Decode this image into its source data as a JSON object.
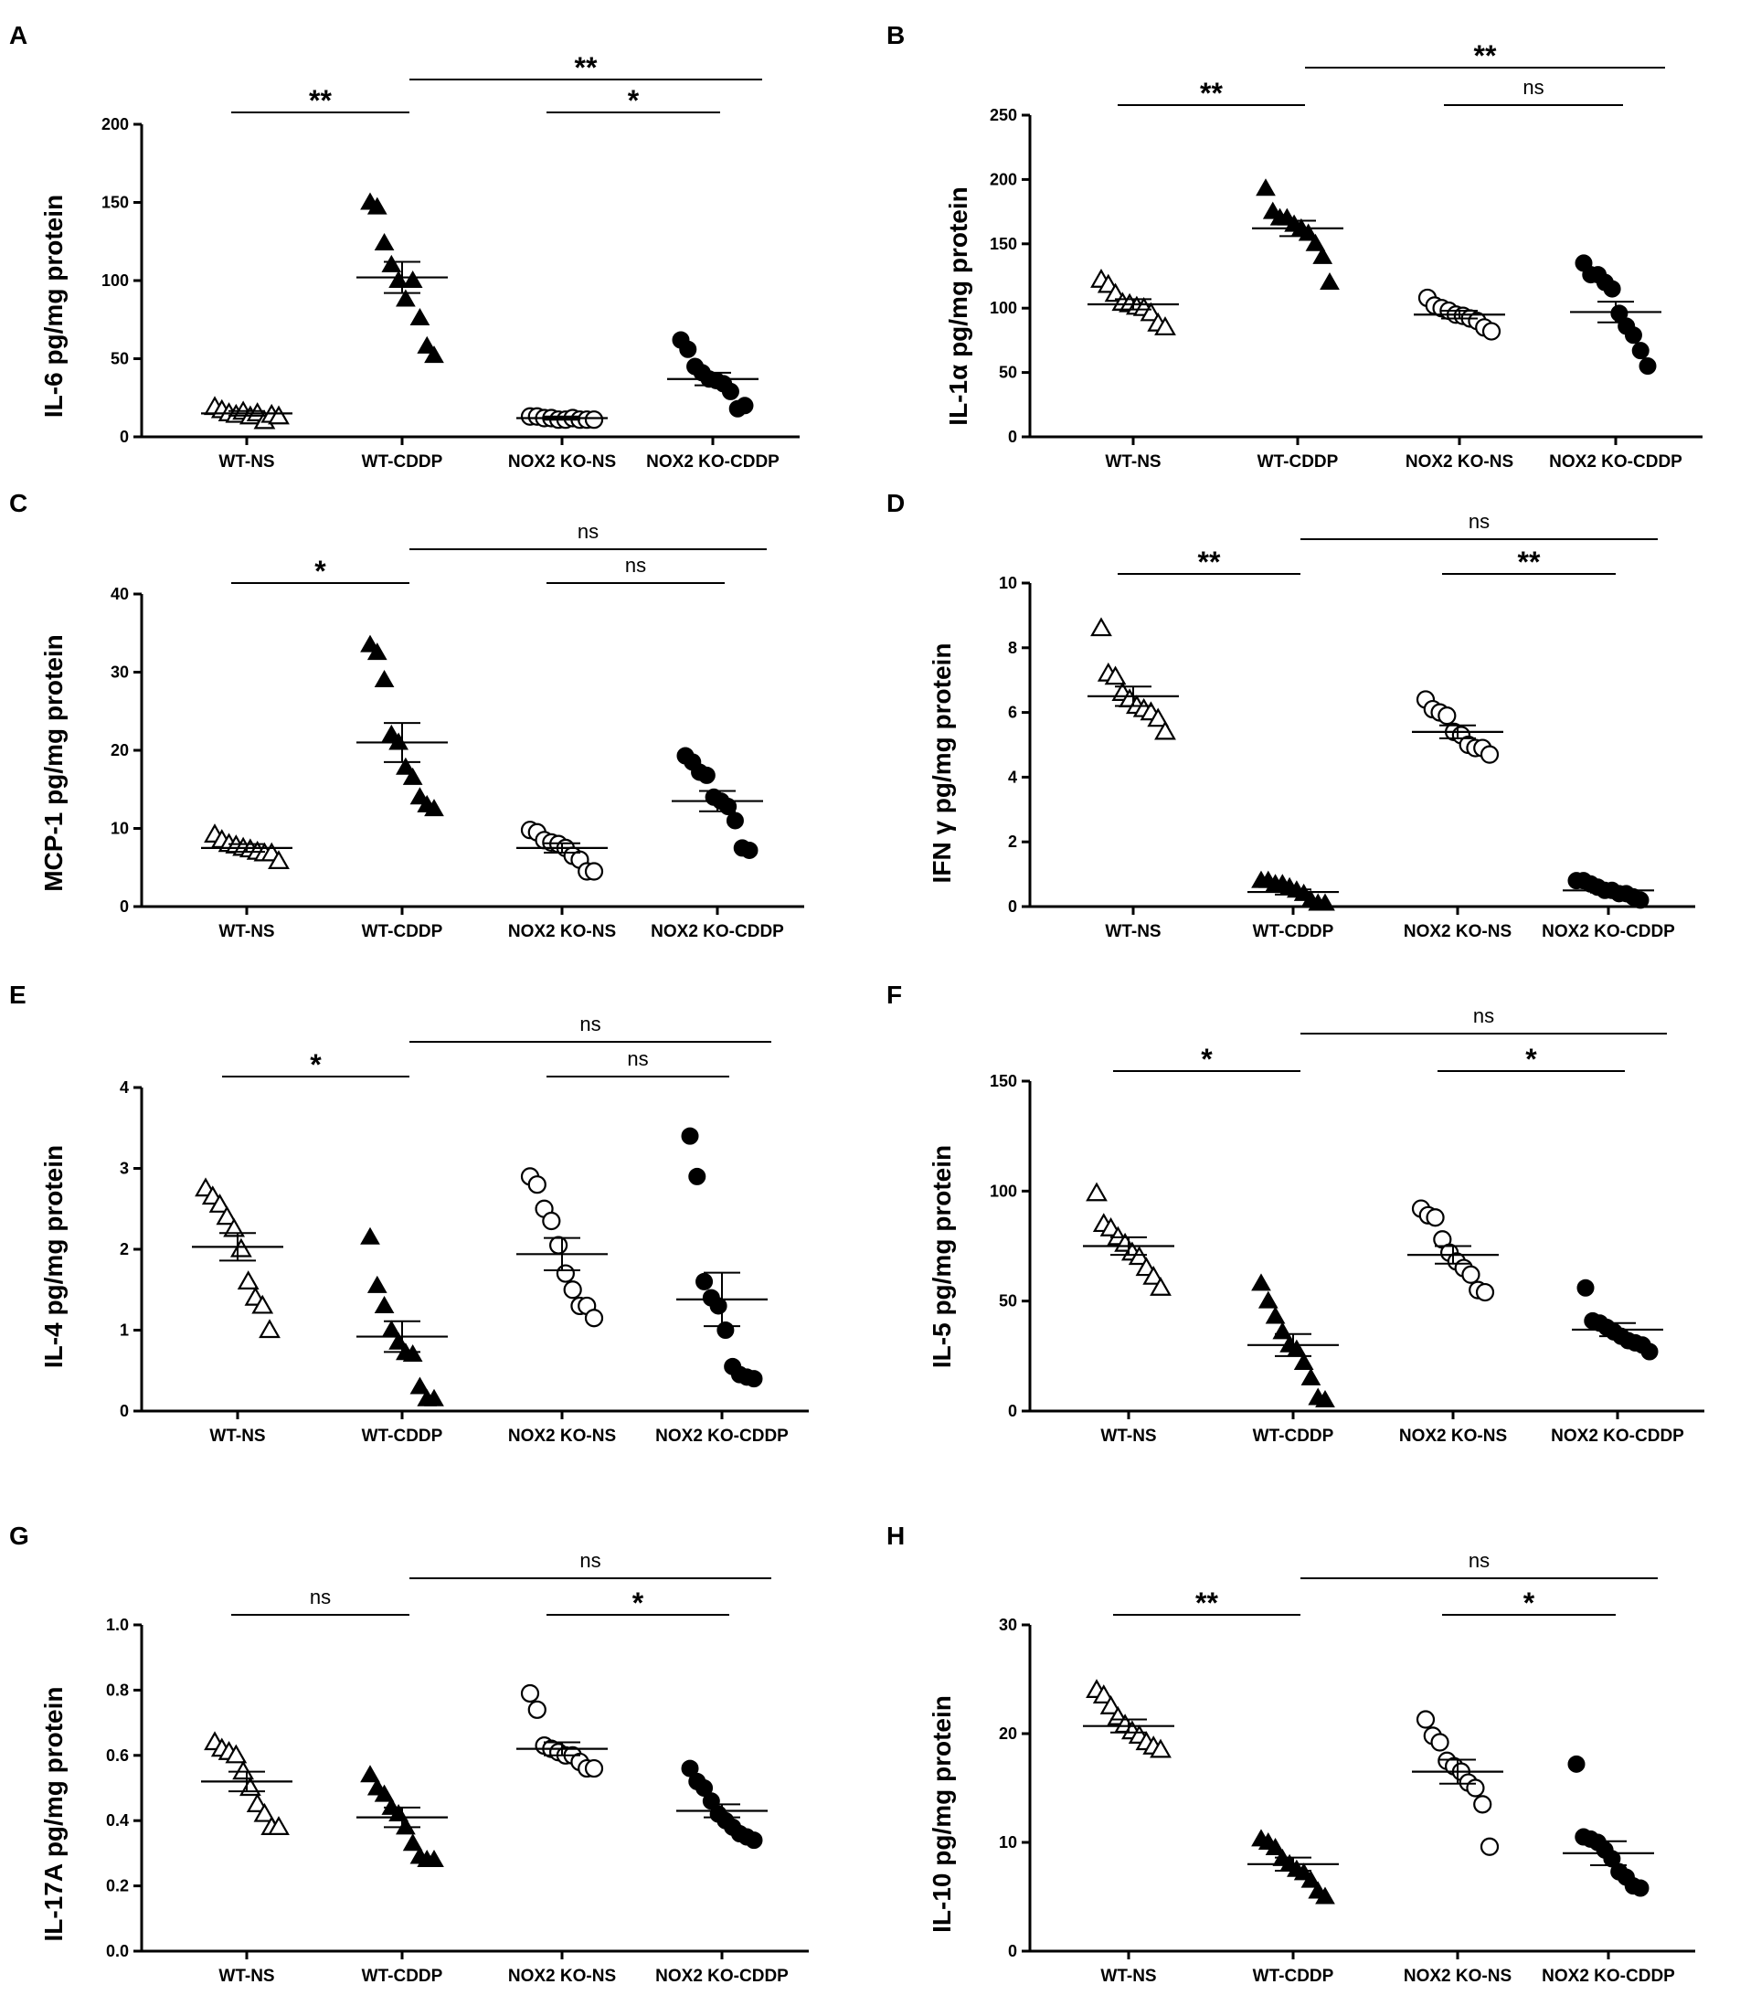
{
  "figure": {
    "groups": [
      "WT-NS",
      "WT-CDDP",
      "NOX2 KO-NS",
      "NOX2 KO-CDDP"
    ]
  },
  "chart_data": [
    {
      "type": "scatter",
      "panel": "A",
      "ylabel": "IL-6 pg/mg protein",
      "ylim": [
        0,
        200
      ],
      "yticks": [
        "0",
        "50",
        "100",
        "150",
        "200"
      ],
      "categories": [
        "WT-NS",
        "WT-CDDP",
        "NOX2 KO-NS",
        "NOX2 KO-CDDP"
      ],
      "series": [
        {
          "name": "WT-NS",
          "marker": "triangle-open",
          "mean": 15,
          "sem": 1.5,
          "values": [
            19,
            17,
            15,
            14,
            16,
            13,
            15,
            10,
            14,
            13
          ]
        },
        {
          "name": "WT-CDDP",
          "marker": "triangle-filled",
          "mean": 102,
          "sem": 10,
          "values": [
            150,
            147,
            124,
            110,
            100,
            88,
            100,
            76,
            58,
            52
          ]
        },
        {
          "name": "NOX2 KO-NS",
          "marker": "circle-open",
          "mean": 12,
          "sem": 1,
          "values": [
            13,
            13,
            12,
            12,
            11,
            11,
            12,
            11,
            11,
            11
          ]
        },
        {
          "name": "NOX2 KO-CDDP",
          "marker": "circle-filled",
          "mean": 37,
          "sem": 4,
          "values": [
            62,
            56,
            45,
            41,
            37,
            36,
            34,
            29,
            18,
            20
          ]
        }
      ],
      "comparisons": [
        {
          "from": "WT-NS",
          "to": "WT-CDDP",
          "label": "**"
        },
        {
          "from": "NOX2 KO-NS",
          "to": "NOX2 KO-CDDP",
          "label": "*"
        },
        {
          "from": "WT-CDDP",
          "to": "NOX2 KO-CDDP",
          "label": "**"
        }
      ]
    },
    {
      "type": "scatter",
      "panel": "B",
      "ylabel": "IL-1α pg/mg protein",
      "ylim": [
        0,
        250
      ],
      "yticks": [
        "0",
        "50",
        "100",
        "150",
        "200",
        "250"
      ],
      "categories": [
        "WT-NS",
        "WT-CDDP",
        "NOX2 KO-NS",
        "NOX2 KO-CDDP"
      ],
      "series": [
        {
          "name": "WT-NS",
          "marker": "triangle-open",
          "mean": 103,
          "sem": 4,
          "values": [
            122,
            118,
            111,
            104,
            103,
            101,
            100,
            96,
            88,
            85
          ]
        },
        {
          "name": "WT-CDDP",
          "marker": "triangle-filled",
          "mean": 162,
          "sem": 6,
          "values": [
            193,
            175,
            170,
            170,
            165,
            162,
            158,
            150,
            140,
            120
          ]
        },
        {
          "name": "NOX2 KO-NS",
          "marker": "circle-open",
          "mean": 95,
          "sem": 3,
          "values": [
            108,
            102,
            100,
            98,
            95,
            94,
            92,
            90,
            85,
            82
          ]
        },
        {
          "name": "NOX2 KO-CDDP",
          "marker": "circle-filled",
          "mean": 97,
          "sem": 8,
          "values": [
            135,
            126,
            126,
            120,
            115,
            96,
            86,
            79,
            67,
            55
          ]
        }
      ],
      "comparisons": [
        {
          "from": "WT-NS",
          "to": "WT-CDDP",
          "label": "**"
        },
        {
          "from": "NOX2 KO-NS",
          "to": "NOX2 KO-CDDP",
          "label": "ns"
        },
        {
          "from": "WT-CDDP",
          "to": "NOX2 KO-CDDP",
          "label": "**"
        }
      ]
    },
    {
      "type": "scatter",
      "panel": "C",
      "ylabel": "MCP-1 pg/mg protein",
      "ylim": [
        0,
        40
      ],
      "yticks": [
        "0",
        "10",
        "20",
        "30",
        "40"
      ],
      "categories": [
        "WT-NS",
        "WT-CDDP",
        "NOX2 KO-NS",
        "NOX2 KO-CDDP"
      ],
      "series": [
        {
          "name": "WT-NS",
          "marker": "triangle-open",
          "mean": 7.5,
          "sem": 0.5,
          "values": [
            9.2,
            8.5,
            8,
            7.8,
            7.5,
            7.3,
            7,
            6.8,
            6.8,
            5.8
          ]
        },
        {
          "name": "WT-CDDP",
          "marker": "triangle-filled",
          "mean": 21,
          "sem": 2.5,
          "values": [
            33.5,
            32.5,
            29,
            22,
            21,
            17.8,
            16.5,
            14,
            13,
            12.5
          ]
        },
        {
          "name": "NOX2 KO-NS",
          "marker": "circle-open",
          "mean": 7.5,
          "sem": 0.6,
          "values": [
            9.8,
            9.5,
            8.5,
            8.2,
            8,
            7.5,
            6.5,
            6,
            4.5,
            4.5
          ]
        },
        {
          "name": "NOX2 KO-CDDP",
          "marker": "circle-filled",
          "mean": 13.5,
          "sem": 1.3,
          "values": [
            19.3,
            18.5,
            17.2,
            16.8,
            14,
            13.5,
            12.8,
            11,
            7.5,
            7.2
          ]
        }
      ],
      "comparisons": [
        {
          "from": "WT-NS",
          "to": "WT-CDDP",
          "label": "*"
        },
        {
          "from": "NOX2 KO-NS",
          "to": "NOX2 KO-CDDP",
          "label": "ns"
        },
        {
          "from": "WT-CDDP",
          "to": "NOX2 KO-CDDP",
          "label": "ns"
        }
      ]
    },
    {
      "type": "scatter",
      "panel": "D",
      "ylabel": "IFN γ pg/mg protein",
      "ylim": [
        0,
        10
      ],
      "yticks": [
        "0",
        "2",
        "4",
        "6",
        "8",
        "10"
      ],
      "categories": [
        "WT-NS",
        "WT-CDDP",
        "NOX2 KO-NS",
        "NOX2 KO-CDDP"
      ],
      "series": [
        {
          "name": "WT-NS",
          "marker": "triangle-open",
          "mean": 6.5,
          "sem": 0.3,
          "values": [
            8.6,
            7.2,
            7.1,
            6.6,
            6.4,
            6.2,
            6.1,
            6.0,
            5.8,
            5.4
          ]
        },
        {
          "name": "WT-CDDP",
          "marker": "triangle-filled",
          "mean": 0.45,
          "sem": 0.08,
          "values": [
            0.8,
            0.8,
            0.7,
            0.7,
            0.6,
            0.5,
            0.4,
            0.2,
            0.1,
            0.1
          ]
        },
        {
          "name": "NOX2 KO-NS",
          "marker": "circle-open",
          "mean": 5.4,
          "sem": 0.2,
          "values": [
            6.4,
            6.1,
            6.0,
            5.9,
            5.4,
            5.3,
            5.0,
            4.9,
            4.9,
            4.7
          ]
        },
        {
          "name": "NOX2 KO-CDDP",
          "marker": "circle-filled",
          "mean": 0.5,
          "sem": 0.07,
          "values": [
            0.8,
            0.8,
            0.7,
            0.6,
            0.5,
            0.5,
            0.4,
            0.4,
            0.3,
            0.2
          ]
        }
      ],
      "comparisons": [
        {
          "from": "WT-NS",
          "to": "WT-CDDP",
          "label": "**"
        },
        {
          "from": "NOX2 KO-NS",
          "to": "NOX2 KO-CDDP",
          "label": "**"
        },
        {
          "from": "WT-CDDP",
          "to": "NOX2 KO-CDDP",
          "label": "ns"
        }
      ]
    },
    {
      "type": "scatter",
      "panel": "E",
      "ylabel": "IL-4 pg/mg protein",
      "ylim": [
        0,
        4
      ],
      "yticks": [
        "0",
        "1",
        "2",
        "3",
        "4"
      ],
      "categories": [
        "WT-NS",
        "WT-CDDP",
        "NOX2 KO-NS",
        "NOX2 KO-CDDP"
      ],
      "series": [
        {
          "name": "WT-NS",
          "marker": "triangle-open",
          "mean": 2.03,
          "sem": 0.17,
          "values": [
            2.75,
            2.65,
            2.55,
            2.4,
            2.25,
            2.0,
            1.6,
            1.4,
            1.3,
            1.0
          ]
        },
        {
          "name": "WT-CDDP",
          "marker": "triangle-filled",
          "mean": 0.92,
          "sem": 0.19,
          "values": [
            2.15,
            1.55,
            1.3,
            1.0,
            0.85,
            0.72,
            0.7,
            0.3,
            0.15,
            0.15
          ]
        },
        {
          "name": "NOX2 KO-NS",
          "marker": "circle-open",
          "mean": 1.94,
          "sem": 0.2,
          "values": [
            2.9,
            2.8,
            2.5,
            2.35,
            2.05,
            1.7,
            1.5,
            1.3,
            1.3,
            1.15
          ]
        },
        {
          "name": "NOX2 KO-CDDP",
          "marker": "circle-filled",
          "mean": 1.38,
          "sem": 0.33,
          "values": [
            3.4,
            2.9,
            1.6,
            1.4,
            1.3,
            1.0,
            0.55,
            0.45,
            0.42,
            0.4
          ]
        }
      ],
      "comparisons": [
        {
          "from": "WT-NS",
          "to": "WT-CDDP",
          "label": "*"
        },
        {
          "from": "NOX2 KO-NS",
          "to": "NOX2 KO-CDDP",
          "label": "ns"
        },
        {
          "from": "WT-CDDP",
          "to": "NOX2 KO-CDDP",
          "label": "ns"
        }
      ]
    },
    {
      "type": "scatter",
      "panel": "F",
      "ylabel": "IL-5 pg/mg protein",
      "ylim": [
        0,
        150
      ],
      "yticks": [
        "0",
        "50",
        "100",
        "150"
      ],
      "categories": [
        "WT-NS",
        "WT-CDDP",
        "NOX2 KO-NS",
        "NOX2 KO-CDDP"
      ],
      "series": [
        {
          "name": "WT-NS",
          "marker": "triangle-open",
          "mean": 75,
          "sem": 4,
          "values": [
            99,
            85,
            83,
            79,
            76,
            72,
            70,
            65,
            61,
            56
          ]
        },
        {
          "name": "WT-CDDP",
          "marker": "triangle-filled",
          "mean": 30,
          "sem": 5,
          "values": [
            58,
            50,
            43,
            36,
            30,
            28,
            22,
            15,
            6,
            5
          ]
        },
        {
          "name": "NOX2 KO-NS",
          "marker": "circle-open",
          "mean": 71,
          "sem": 4,
          "values": [
            92,
            89,
            88,
            78,
            72,
            68,
            65,
            62,
            55,
            54
          ]
        },
        {
          "name": "NOX2 KO-CDDP",
          "marker": "circle-filled",
          "mean": 37,
          "sem": 3,
          "values": [
            56,
            41,
            40,
            38,
            36,
            34,
            32,
            31,
            30,
            27
          ]
        }
      ],
      "comparisons": [
        {
          "from": "WT-NS",
          "to": "WT-CDDP",
          "label": "*"
        },
        {
          "from": "NOX2 KO-NS",
          "to": "NOX2 KO-CDDP",
          "label": "*"
        },
        {
          "from": "WT-CDDP",
          "to": "NOX2 KO-CDDP",
          "label": "ns"
        }
      ]
    },
    {
      "type": "scatter",
      "panel": "G",
      "ylabel": "IL-17A pg/mg protein",
      "ylim": [
        0,
        1.0
      ],
      "yticks": [
        "0.0",
        "0.2",
        "0.4",
        "0.6",
        "0.8",
        "1.0"
      ],
      "categories": [
        "WT-NS",
        "WT-CDDP",
        "NOX2 KO-NS",
        "NOX2 KO-CDDP"
      ],
      "series": [
        {
          "name": "WT-NS",
          "marker": "triangle-open",
          "mean": 0.52,
          "sem": 0.03,
          "values": [
            0.64,
            0.62,
            0.61,
            0.6,
            0.55,
            0.5,
            0.45,
            0.42,
            0.38,
            0.38
          ]
        },
        {
          "name": "WT-CDDP",
          "marker": "triangle-filled",
          "mean": 0.41,
          "sem": 0.03,
          "values": [
            0.54,
            0.5,
            0.48,
            0.44,
            0.42,
            0.38,
            0.33,
            0.29,
            0.28,
            0.28
          ]
        },
        {
          "name": "NOX2 KO-NS",
          "marker": "circle-open",
          "mean": 0.62,
          "sem": 0.02,
          "values": [
            0.79,
            0.74,
            0.63,
            0.62,
            0.61,
            0.6,
            0.6,
            0.58,
            0.56,
            0.56
          ]
        },
        {
          "name": "NOX2 KO-CDDP",
          "marker": "circle-filled",
          "mean": 0.43,
          "sem": 0.02,
          "values": [
            0.56,
            0.52,
            0.5,
            0.46,
            0.42,
            0.4,
            0.38,
            0.36,
            0.35,
            0.34
          ]
        }
      ],
      "comparisons": [
        {
          "from": "WT-NS",
          "to": "WT-CDDP",
          "label": "ns"
        },
        {
          "from": "NOX2 KO-NS",
          "to": "NOX2 KO-CDDP",
          "label": "*"
        },
        {
          "from": "WT-CDDP",
          "to": "NOX2 KO-CDDP",
          "label": "ns"
        }
      ]
    },
    {
      "type": "scatter",
      "panel": "H",
      "ylabel": "IL-10 pg/mg protein",
      "ylim": [
        0,
        30
      ],
      "yticks": [
        "0",
        "10",
        "20",
        "30"
      ],
      "categories": [
        "WT-NS",
        "WT-CDDP",
        "NOX2 KO-NS",
        "NOX2 KO-CDDP"
      ],
      "series": [
        {
          "name": "WT-NS",
          "marker": "triangle-open",
          "mean": 20.7,
          "sem": 0.6,
          "values": [
            24,
            23.5,
            22.5,
            21.5,
            20.8,
            20.2,
            19.8,
            19.2,
            18.8,
            18.5
          ]
        },
        {
          "name": "WT-CDDP",
          "marker": "triangle-filled",
          "mean": 8,
          "sem": 0.6,
          "values": [
            10.3,
            10,
            9.5,
            8.5,
            8,
            7.5,
            7.2,
            6.5,
            5.5,
            5.0
          ]
        },
        {
          "name": "NOX2 KO-NS",
          "marker": "circle-open",
          "mean": 16.5,
          "sem": 1.1,
          "values": [
            21.3,
            19.8,
            19.2,
            17.5,
            17,
            16.5,
            15.5,
            15,
            13.5,
            9.6
          ]
        },
        {
          "name": "NOX2 KO-CDDP",
          "marker": "circle-filled",
          "mean": 9,
          "sem": 1.1,
          "values": [
            17.2,
            10.5,
            10.3,
            10,
            9.3,
            8.5,
            7.3,
            6.8,
            6.0,
            5.8
          ]
        }
      ],
      "comparisons": [
        {
          "from": "WT-NS",
          "to": "WT-CDDP",
          "label": "**"
        },
        {
          "from": "NOX2 KO-NS",
          "to": "NOX2 KO-CDDP",
          "label": "*"
        },
        {
          "from": "WT-CDDP",
          "to": "NOX2 KO-CDDP",
          "label": "ns"
        }
      ]
    }
  ]
}
